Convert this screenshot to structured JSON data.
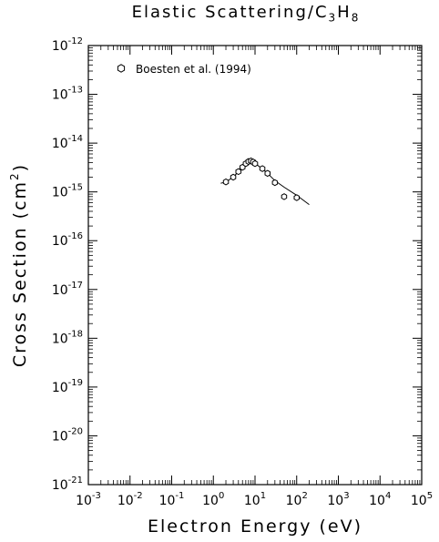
{
  "chart_data": {
    "type": "line",
    "title_parts": [
      "Elastic Scattering/C",
      "3",
      "H",
      "8"
    ],
    "xlabel": "Electron Energy (eV)",
    "ylabel_main": "Cross Section (cm",
    "ylabel_sup": "2",
    "ylabel_close": ")",
    "x_scale": "log",
    "y_scale": "log",
    "xlim": [
      0.001,
      100000
    ],
    "ylim": [
      1e-21,
      1e-12
    ],
    "x_tick_exponents": [
      "-3",
      "-2",
      "-1",
      "0",
      "1",
      "2",
      "3",
      "4",
      "5"
    ],
    "y_tick_exponents": [
      "-21",
      "-20",
      "-19",
      "-18",
      "-17",
      "-16",
      "-15",
      "-14",
      "-13",
      "-12"
    ],
    "tick_base": "10",
    "legend_position": "top-left",
    "grid": false,
    "series": [
      {
        "name": "Boesten et al. (1994)",
        "marker": "hexagon",
        "x": [
          2,
          3,
          4,
          5,
          6,
          7,
          8,
          9,
          10,
          15,
          20,
          30,
          50,
          100
        ],
        "y": [
          1.6e-15,
          2e-15,
          2.6e-15,
          3.2e-15,
          3.8e-15,
          4.2e-15,
          4.3e-15,
          4.1e-15,
          3.8e-15,
          3e-15,
          2.4e-15,
          1.55e-15,
          8e-16,
          7.6e-16
        ]
      }
    ],
    "fit_line": {
      "x": [
        1.5,
        2,
        3,
        4,
        5,
        6,
        7,
        8,
        9,
        10,
        15,
        20,
        30,
        50,
        100,
        200
      ],
      "y": [
        1.5e-15,
        1.6e-15,
        2e-15,
        2.6e-15,
        3.2e-15,
        3.8e-15,
        4.2e-15,
        4.3e-15,
        4.1e-15,
        3.8e-15,
        3e-15,
        2.4e-15,
        1.7e-15,
        1.25e-15,
        8.5e-16,
        5.5e-16
      ]
    }
  }
}
